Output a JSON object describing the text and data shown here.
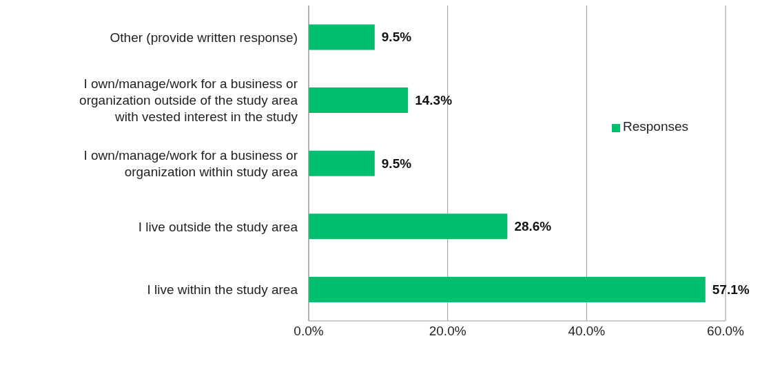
{
  "chart_data": {
    "type": "bar",
    "orientation": "horizontal",
    "categories": [
      "Other (provide written response)",
      "I own/manage/work for a business or organization outside of the study area with vested interest in the study",
      "I own/manage/work for a business or organization within study area",
      "I live outside the study area",
      "I live within the study area"
    ],
    "series": [
      {
        "name": "Responses",
        "color": "#00c06f",
        "values": [
          9.5,
          14.3,
          9.5,
          28.6,
          57.1
        ],
        "value_labels": [
          "9.5%",
          "14.3%",
          "9.5%",
          "28.6%",
          "57.1%"
        ]
      }
    ],
    "xlim": [
      0,
      60
    ],
    "xticks": [
      {
        "value": 0,
        "label": "0.0%"
      },
      {
        "value": 20,
        "label": "20.0%"
      },
      {
        "value": 40,
        "label": "40.0%"
      },
      {
        "value": 60,
        "label": "60.0%"
      }
    ],
    "grid": "x",
    "legend": "right"
  }
}
